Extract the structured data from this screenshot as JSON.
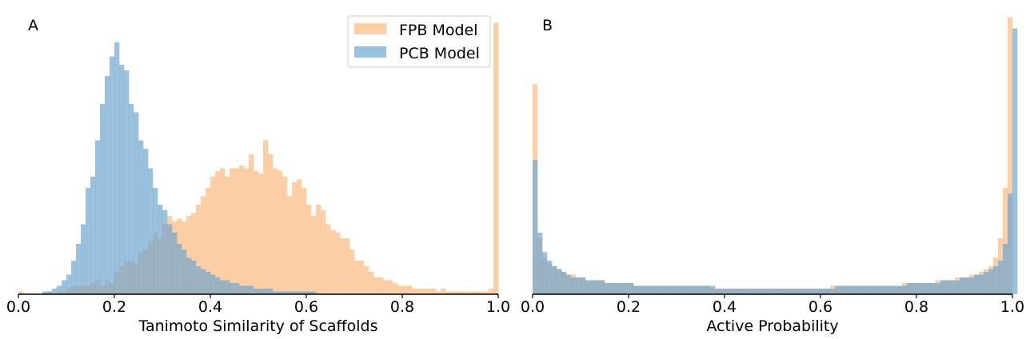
{
  "colors": {
    "fpb": "#fdb97d",
    "pcb": "#6fa6cf",
    "overlap": "#a4a59f",
    "axis": "#000000",
    "legend_border": "#cccccc"
  },
  "legend": {
    "fpb_label": "FPB Model",
    "pcb_label": "PCB Model"
  },
  "chart_data": [
    {
      "type": "bar",
      "panel_label": "A",
      "xlabel": "Tanimoto Similarity of Scaffolds",
      "ylabel": "",
      "xlim": [
        0.0,
        1.0
      ],
      "ylim": [
        0,
        1.0
      ],
      "xticks": [
        "0.0",
        "0.2",
        "0.4",
        "0.6",
        "0.8",
        "1.0"
      ],
      "yticks": [],
      "bin_start": 0.0,
      "bin_width": 0.01,
      "note_values": "relative bar heights (fraction of plotted y range), y axis has no tick labels",
      "series": [
        {
          "name": "FPB Model",
          "values": [
            0.01,
            0.0,
            0.0,
            0.0,
            0.0,
            0.0,
            0.01,
            0.0,
            0.01,
            0.01,
            0.02,
            0.03,
            0.03,
            0.03,
            0.03,
            0.04,
            0.05,
            0.03,
            0.05,
            0.04,
            0.08,
            0.1,
            0.12,
            0.12,
            0.11,
            0.15,
            0.16,
            0.19,
            0.22,
            0.2,
            0.25,
            0.28,
            0.26,
            0.27,
            0.26,
            0.28,
            0.29,
            0.32,
            0.35,
            0.38,
            0.42,
            0.44,
            0.45,
            0.42,
            0.45,
            0.45,
            0.46,
            0.45,
            0.5,
            0.44,
            0.43,
            0.55,
            0.5,
            0.45,
            0.44,
            0.42,
            0.35,
            0.4,
            0.41,
            0.38,
            0.32,
            0.28,
            0.32,
            0.3,
            0.25,
            0.23,
            0.22,
            0.2,
            0.2,
            0.16,
            0.12,
            0.12,
            0.1,
            0.08,
            0.06,
            0.06,
            0.05,
            0.05,
            0.04,
            0.03,
            0.03,
            0.03,
            0.02,
            0.02,
            0.02,
            0.02,
            0.02,
            0.01,
            0.02,
            0.01,
            0.01,
            0.01,
            0.01,
            0.01,
            0.01,
            0.01,
            0.01,
            0.01,
            0.02,
            0.97
          ]
        },
        {
          "name": "PCB Model",
          "values": [
            0.0,
            0.0,
            0.0,
            0.0,
            0.0,
            0.01,
            0.01,
            0.02,
            0.03,
            0.05,
            0.07,
            0.12,
            0.18,
            0.25,
            0.38,
            0.42,
            0.55,
            0.68,
            0.78,
            0.85,
            0.9,
            0.82,
            0.8,
            0.68,
            0.65,
            0.55,
            0.52,
            0.45,
            0.38,
            0.32,
            0.3,
            0.25,
            0.22,
            0.18,
            0.16,
            0.13,
            0.12,
            0.1,
            0.09,
            0.08,
            0.07,
            0.06,
            0.05,
            0.05,
            0.04,
            0.04,
            0.03,
            0.03,
            0.03,
            0.02,
            0.02,
            0.02,
            0.02,
            0.01,
            0.01,
            0.01,
            0.01,
            0.01,
            0.01,
            0.01,
            0.01,
            0.01,
            0.0,
            0.0,
            0.0,
            0.0,
            0.0,
            0.0,
            0.0,
            0.0,
            0.0,
            0.0,
            0.0,
            0.0,
            0.0,
            0.0,
            0.0,
            0.0,
            0.0,
            0.0,
            0.0,
            0.0,
            0.0,
            0.0,
            0.0,
            0.0,
            0.0,
            0.0,
            0.0,
            0.0,
            0.0,
            0.0,
            0.0,
            0.0,
            0.0,
            0.0,
            0.0,
            0.0,
            0.0,
            0.0
          ]
        }
      ]
    },
    {
      "type": "bar",
      "panel_label": "B",
      "xlabel": "Active Probability",
      "ylabel": "",
      "xlim": [
        0.0,
        1.0
      ],
      "ylim": [
        0,
        1.0
      ],
      "xticks": [
        "0.0",
        "0.2",
        "0.4",
        "0.6",
        "0.8",
        "1.0"
      ],
      "yticks": [],
      "bin_start": 0.0,
      "bin_width": 0.01,
      "note_values": "relative bar heights (fraction of plotted y range), y axis has no tick labels",
      "series": [
        {
          "name": "FPB Model",
          "values": [
            0.75,
            0.2,
            0.13,
            0.11,
            0.1,
            0.09,
            0.08,
            0.07,
            0.07,
            0.06,
            0.06,
            0.05,
            0.05,
            0.05,
            0.05,
            0.04,
            0.04,
            0.04,
            0.04,
            0.04,
            0.04,
            0.03,
            0.03,
            0.03,
            0.03,
            0.03,
            0.03,
            0.03,
            0.03,
            0.03,
            0.03,
            0.03,
            0.03,
            0.03,
            0.03,
            0.03,
            0.03,
            0.02,
            0.02,
            0.02,
            0.02,
            0.02,
            0.02,
            0.02,
            0.02,
            0.02,
            0.02,
            0.02,
            0.02,
            0.02,
            0.02,
            0.02,
            0.02,
            0.02,
            0.02,
            0.02,
            0.02,
            0.02,
            0.02,
            0.02,
            0.02,
            0.02,
            0.03,
            0.03,
            0.03,
            0.03,
            0.03,
            0.03,
            0.03,
            0.03,
            0.03,
            0.03,
            0.03,
            0.03,
            0.03,
            0.03,
            0.03,
            0.04,
            0.04,
            0.04,
            0.04,
            0.04,
            0.04,
            0.04,
            0.05,
            0.05,
            0.05,
            0.05,
            0.06,
            0.06,
            0.06,
            0.07,
            0.07,
            0.08,
            0.09,
            0.1,
            0.13,
            0.2,
            0.38,
            0.99
          ]
        },
        {
          "name": "PCB Model",
          "values": [
            0.48,
            0.22,
            0.15,
            0.12,
            0.1,
            0.09,
            0.08,
            0.07,
            0.06,
            0.06,
            0.06,
            0.05,
            0.05,
            0.05,
            0.05,
            0.04,
            0.04,
            0.04,
            0.04,
            0.04,
            0.04,
            0.03,
            0.03,
            0.03,
            0.03,
            0.03,
            0.03,
            0.03,
            0.03,
            0.03,
            0.03,
            0.03,
            0.03,
            0.03,
            0.03,
            0.03,
            0.03,
            0.03,
            0.02,
            0.02,
            0.02,
            0.02,
            0.02,
            0.02,
            0.02,
            0.02,
            0.02,
            0.02,
            0.02,
            0.02,
            0.02,
            0.02,
            0.02,
            0.02,
            0.02,
            0.02,
            0.02,
            0.02,
            0.02,
            0.02,
            0.02,
            0.02,
            0.02,
            0.03,
            0.03,
            0.03,
            0.03,
            0.03,
            0.03,
            0.03,
            0.03,
            0.03,
            0.03,
            0.03,
            0.03,
            0.03,
            0.03,
            0.03,
            0.04,
            0.04,
            0.04,
            0.04,
            0.04,
            0.04,
            0.04,
            0.05,
            0.05,
            0.05,
            0.05,
            0.06,
            0.06,
            0.06,
            0.07,
            0.07,
            0.08,
            0.09,
            0.1,
            0.12,
            0.18,
            0.36,
            0.95
          ]
        }
      ]
    }
  ]
}
